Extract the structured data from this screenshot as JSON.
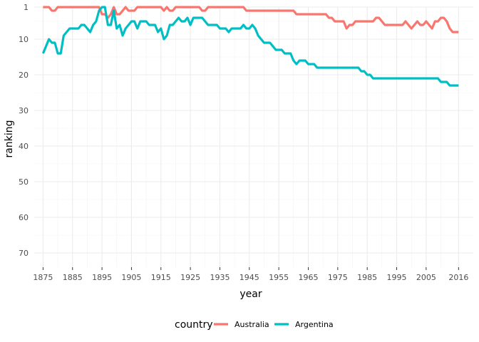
{
  "chart_data": {
    "type": "line",
    "xlabel": "year",
    "ylabel": "ranking",
    "xlim": [
      1872,
      2021
    ],
    "ylim": [
      1,
      74
    ],
    "y_reversed": true,
    "x_ticks": [
      1875,
      1885,
      1895,
      1905,
      1915,
      1925,
      1935,
      1945,
      1955,
      1965,
      1975,
      1985,
      1995,
      2005,
      2016
    ],
    "x_minor_ticks": [
      1880,
      1890,
      1900,
      1910,
      1920,
      1930,
      1940,
      1950,
      1960,
      1970,
      1980,
      1990,
      2000,
      2010
    ],
    "y_ticks": [
      1,
      10,
      20,
      30,
      40,
      50,
      60,
      70
    ],
    "y_minor_ticks": [
      5,
      15,
      25,
      35,
      45,
      55,
      65
    ],
    "grid": true,
    "legend": {
      "title": "country",
      "position": "bottom"
    },
    "series": [
      {
        "name": "Australia",
        "color": "#F8766D",
        "points": [
          [
            1875,
            1
          ],
          [
            1877,
            1
          ],
          [
            1878,
            2
          ],
          [
            1879,
            2
          ],
          [
            1880,
            1
          ],
          [
            1890,
            1
          ],
          [
            1894,
            1
          ],
          [
            1895,
            3
          ],
          [
            1896,
            3
          ],
          [
            1897,
            4
          ],
          [
            1898,
            3
          ],
          [
            1899,
            1
          ],
          [
            1900,
            3
          ],
          [
            1901,
            3
          ],
          [
            1902,
            2
          ],
          [
            1903,
            1
          ],
          [
            1904,
            2
          ],
          [
            1906,
            2
          ],
          [
            1907,
            1
          ],
          [
            1915,
            1
          ],
          [
            1916,
            2
          ],
          [
            1917,
            1
          ],
          [
            1918,
            2
          ],
          [
            1919,
            2
          ],
          [
            1920,
            1
          ],
          [
            1928,
            1
          ],
          [
            1929,
            2
          ],
          [
            1930,
            2
          ],
          [
            1931,
            1
          ],
          [
            1943,
            1
          ],
          [
            1944,
            2
          ],
          [
            1960,
            2
          ],
          [
            1961,
            3
          ],
          [
            1971,
            3
          ],
          [
            1972,
            4
          ],
          [
            1973,
            4
          ],
          [
            1974,
            5
          ],
          [
            1977,
            5
          ],
          [
            1978,
            7
          ],
          [
            1979,
            6
          ],
          [
            1980,
            6
          ],
          [
            1981,
            5
          ],
          [
            1987,
            5
          ],
          [
            1988,
            4
          ],
          [
            1989,
            4
          ],
          [
            1991,
            6
          ],
          [
            1997,
            6
          ],
          [
            1998,
            5
          ],
          [
            1999,
            6
          ],
          [
            2000,
            7
          ],
          [
            2002,
            5
          ],
          [
            2003,
            6
          ],
          [
            2004,
            6
          ],
          [
            2005,
            5
          ],
          [
            2007,
            7
          ],
          [
            2008,
            5
          ],
          [
            2009,
            5
          ],
          [
            2010,
            4
          ],
          [
            2011,
            4
          ],
          [
            2012,
            5
          ],
          [
            2013,
            7
          ],
          [
            2014,
            8
          ],
          [
            2016,
            8
          ]
        ]
      },
      {
        "name": "Argentina",
        "color": "#00BFC4",
        "points": [
          [
            1875,
            14
          ],
          [
            1876,
            12
          ],
          [
            1877,
            10
          ],
          [
            1878,
            11
          ],
          [
            1879,
            11
          ],
          [
            1880,
            14
          ],
          [
            1881,
            14
          ],
          [
            1882,
            9
          ],
          [
            1883,
            8
          ],
          [
            1884,
            7
          ],
          [
            1887,
            7
          ],
          [
            1888,
            6
          ],
          [
            1889,
            6
          ],
          [
            1890,
            7
          ],
          [
            1891,
            8
          ],
          [
            1892,
            6
          ],
          [
            1893,
            5
          ],
          [
            1894,
            2
          ],
          [
            1895,
            1
          ],
          [
            1896,
            1
          ],
          [
            1897,
            6
          ],
          [
            1898,
            6
          ],
          [
            1899,
            2
          ],
          [
            1900,
            7
          ],
          [
            1901,
            6
          ],
          [
            1902,
            9
          ],
          [
            1903,
            7
          ],
          [
            1904,
            6
          ],
          [
            1905,
            5
          ],
          [
            1906,
            5
          ],
          [
            1907,
            7
          ],
          [
            1908,
            5
          ],
          [
            1910,
            5
          ],
          [
            1911,
            6
          ],
          [
            1913,
            6
          ],
          [
            1914,
            8
          ],
          [
            1915,
            7
          ],
          [
            1916,
            10
          ],
          [
            1917,
            9
          ],
          [
            1918,
            6
          ],
          [
            1919,
            6
          ],
          [
            1920,
            5
          ],
          [
            1921,
            4
          ],
          [
            1922,
            5
          ],
          [
            1923,
            5
          ],
          [
            1924,
            4
          ],
          [
            1925,
            6
          ],
          [
            1926,
            4
          ],
          [
            1929,
            4
          ],
          [
            1930,
            5
          ],
          [
            1931,
            6
          ],
          [
            1934,
            6
          ],
          [
            1935,
            7
          ],
          [
            1937,
            7
          ],
          [
            1938,
            8
          ],
          [
            1939,
            7
          ],
          [
            1942,
            7
          ],
          [
            1943,
            6
          ],
          [
            1944,
            7
          ],
          [
            1945,
            7
          ],
          [
            1946,
            6
          ],
          [
            1947,
            7
          ],
          [
            1948,
            9
          ],
          [
            1949,
            10
          ],
          [
            1950,
            11
          ],
          [
            1952,
            11
          ],
          [
            1953,
            12
          ],
          [
            1954,
            13
          ],
          [
            1956,
            13
          ],
          [
            1957,
            14
          ],
          [
            1959,
            14
          ],
          [
            1960,
            16
          ],
          [
            1961,
            17
          ],
          [
            1962,
            16
          ],
          [
            1964,
            16
          ],
          [
            1965,
            17
          ],
          [
            1967,
            17
          ],
          [
            1968,
            18
          ],
          [
            1982,
            18
          ],
          [
            1983,
            19
          ],
          [
            1984,
            19
          ],
          [
            1985,
            20
          ],
          [
            1986,
            20
          ],
          [
            1987,
            21
          ],
          [
            2009,
            21
          ],
          [
            2010,
            22
          ],
          [
            2012,
            22
          ],
          [
            2013,
            23
          ],
          [
            2016,
            23
          ]
        ]
      }
    ]
  }
}
